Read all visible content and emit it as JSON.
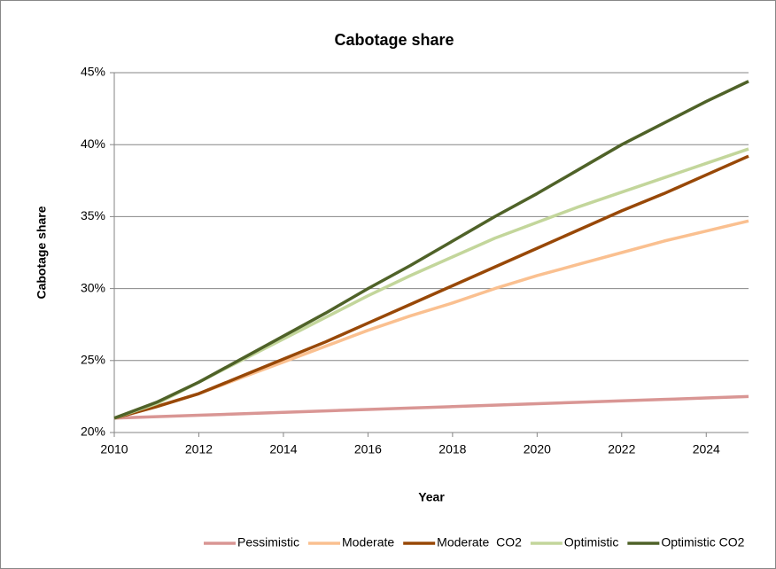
{
  "chart_data": {
    "type": "line",
    "title": "Cabotage share",
    "x_label": "Year",
    "y_label": "Cabotage share",
    "x": [
      2010,
      2011,
      2012,
      2013,
      2014,
      2015,
      2016,
      2017,
      2018,
      2019,
      2020,
      2021,
      2022,
      2023,
      2024,
      2025
    ],
    "series": [
      {
        "name": "Pessimistic",
        "color": "#d99694",
        "values": [
          21.0,
          21.1,
          21.2,
          21.3,
          21.4,
          21.5,
          21.6,
          21.7,
          21.8,
          21.9,
          22.0,
          22.1,
          22.2,
          22.3,
          22.4,
          22.5
        ]
      },
      {
        "name": "Moderate",
        "color": "#fac090",
        "values": [
          21.0,
          21.8,
          22.7,
          23.8,
          24.9,
          26.0,
          27.1,
          28.1,
          29.0,
          30.0,
          30.9,
          31.7,
          32.5,
          33.3,
          34.0,
          34.7
        ]
      },
      {
        "name": "Moderate  CO2",
        "color": "#984807",
        "values": [
          21.0,
          21.8,
          22.7,
          23.9,
          25.1,
          26.3,
          27.6,
          28.9,
          30.2,
          31.5,
          32.8,
          34.1,
          35.4,
          36.6,
          37.9,
          39.2
        ]
      },
      {
        "name": "Optimistic",
        "color": "#c3d69b",
        "values": [
          21.0,
          22.0,
          23.5,
          25.0,
          26.5,
          28.0,
          29.5,
          30.9,
          32.2,
          33.5,
          34.6,
          35.7,
          36.7,
          37.7,
          38.7,
          39.7
        ]
      },
      {
        "name": "Optimistic CO2",
        "color": "#4f6228",
        "values": [
          21.0,
          22.1,
          23.5,
          25.1,
          26.7,
          28.3,
          30.0,
          31.6,
          33.3,
          35.0,
          36.6,
          38.3,
          40.0,
          41.5,
          43.0,
          44.4
        ]
      }
    ],
    "xlim": [
      2010,
      2025
    ],
    "xticks": [
      2010,
      2012,
      2014,
      2016,
      2018,
      2020,
      2022,
      2024
    ],
    "ylim": [
      20,
      45
    ],
    "yticks": [
      {
        "value": 20,
        "label": "20%"
      },
      {
        "value": 25,
        "label": "25%"
      },
      {
        "value": 30,
        "label": "30%"
      },
      {
        "value": 35,
        "label": "35%"
      },
      {
        "value": 40,
        "label": "40%"
      },
      {
        "value": 45,
        "label": "45%"
      }
    ],
    "grid": true,
    "legend": "bottom"
  }
}
